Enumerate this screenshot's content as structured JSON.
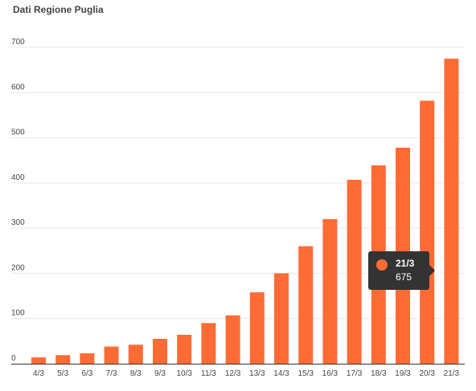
{
  "header": {
    "title": "Dati Regione Puglia"
  },
  "colors": {
    "bar": "#ff6b35",
    "grid": "#e6e6e6",
    "axis": "#333333",
    "text": "#444444",
    "tooltip_bg": "#333333"
  },
  "tooltip": {
    "category": "21/3",
    "value": "675"
  },
  "chart_data": {
    "type": "bar",
    "title": "Dati Regione Puglia",
    "categories": [
      "4/3",
      "5/3",
      "6/3",
      "7/3",
      "8/3",
      "9/3",
      "10/3",
      "11/3",
      "12/3",
      "13/3",
      "14/3",
      "15/3",
      "16/3",
      "17/3",
      "18/3",
      "19/3",
      "20/3",
      "21/3"
    ],
    "values": [
      14,
      19,
      23,
      38,
      42,
      55,
      64,
      90,
      107,
      158,
      200,
      260,
      320,
      407,
      439,
      478,
      582,
      675
    ],
    "ylim": [
      0,
      700
    ],
    "yticks": [
      0,
      100,
      200,
      300,
      400,
      500,
      600,
      700
    ],
    "grid": true,
    "legend": "none"
  }
}
